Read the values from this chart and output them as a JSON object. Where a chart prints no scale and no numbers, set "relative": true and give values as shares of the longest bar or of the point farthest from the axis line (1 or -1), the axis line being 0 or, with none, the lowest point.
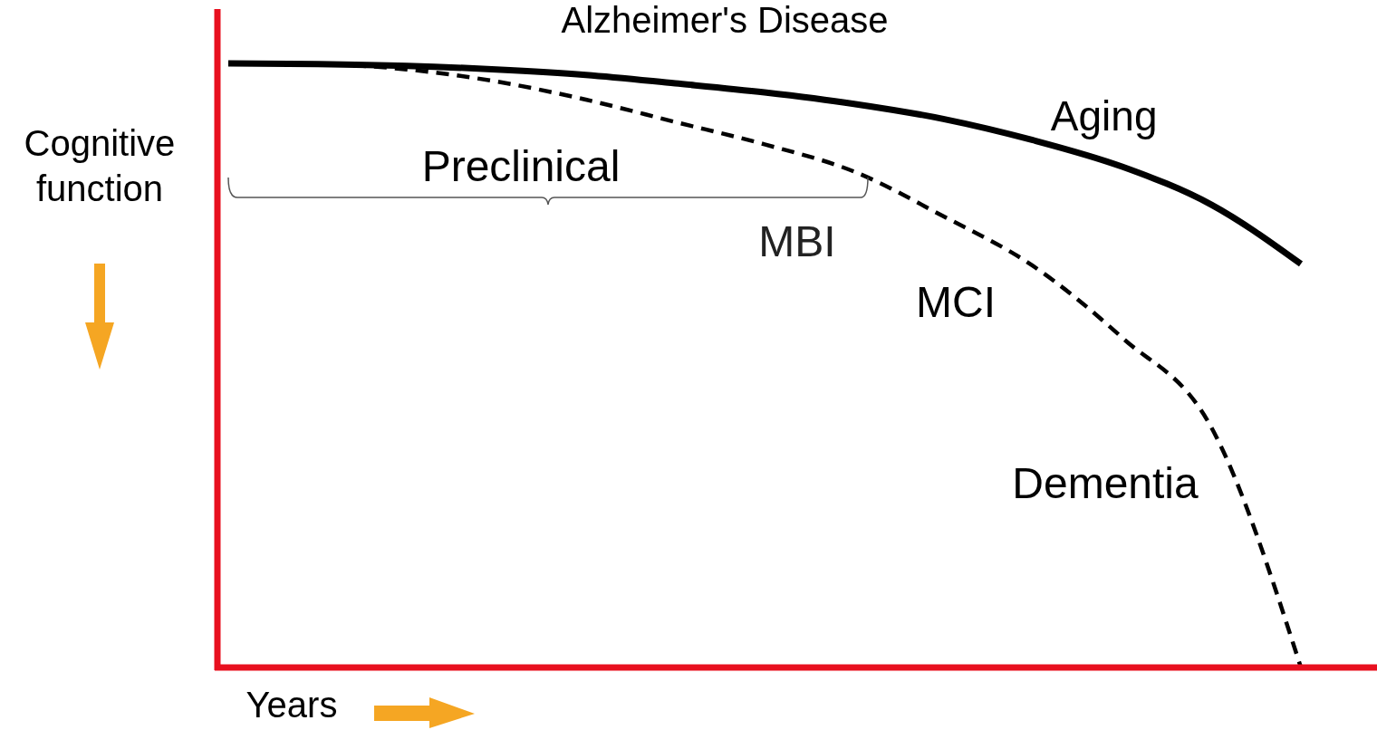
{
  "chart_data": {
    "type": "line",
    "title": "Alzheimer's Disease",
    "xlabel": "Years",
    "ylabel": "Cognitive function",
    "relative": true,
    "categories": [
      null,
      null,
      null,
      null,
      null,
      null,
      null,
      null,
      null,
      null,
      null,
      null,
      null
    ],
    "series": [
      {
        "name": "Aging",
        "color": "#000000",
        "line_style": "solid",
        "values": [
          1.0,
          0.999,
          0.996,
          0.99,
          0.981,
          0.967,
          0.952,
          0.933,
          0.908,
          0.873,
          0.829,
          0.766,
          0.668
        ]
      },
      {
        "color": "#000000",
        "line_style": "dashed",
        "values": [
          1.0,
          0.999,
          0.99,
          0.97,
          0.94,
          0.903,
          0.866,
          0.821,
          0.747,
          0.665,
          0.546,
          0.397,
          0
        ]
      }
    ],
    "annotations": [
      "Preclinical",
      "MBI",
      "MCI",
      "Dementia"
    ]
  }
}
